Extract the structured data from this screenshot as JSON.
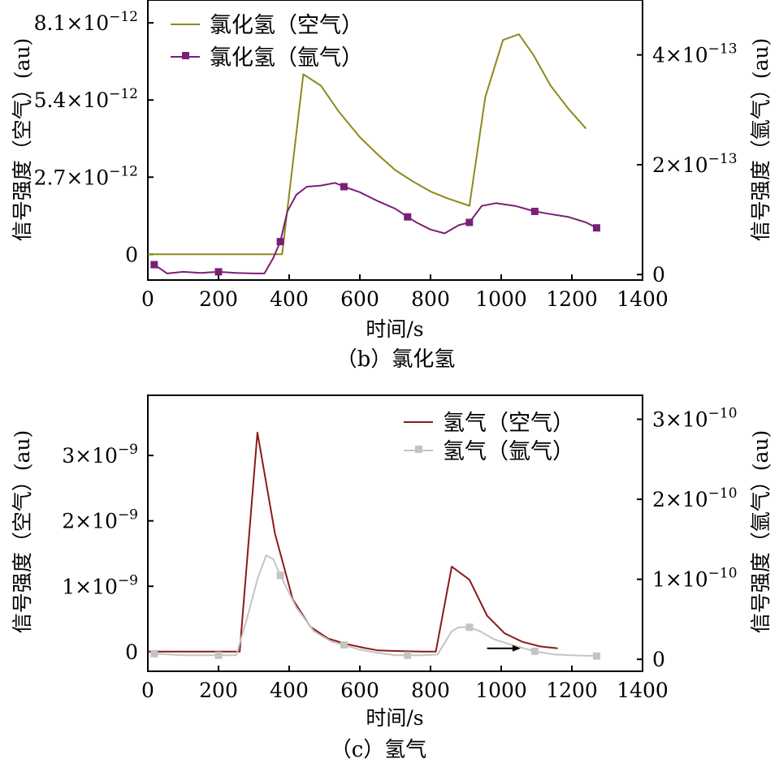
{
  "chart_data": [
    {
      "panel": "b",
      "type": "line",
      "caption": "（b）氯化氢",
      "xlabel": "时间/s",
      "xlim": [
        0,
        1400
      ],
      "xticks": [
        0,
        200,
        400,
        600,
        800,
        1000,
        1200,
        1400
      ],
      "ylabel_left": "信号强度（空气）(au)",
      "ylabel_right": "信号强度（氩气）(au)",
      "ylim_left": [
        -9e-13,
        8.9e-12
      ],
      "yticks_left": [
        {
          "value": 0,
          "mantissa": "0",
          "exp": ""
        },
        {
          "value": 2.7e-12,
          "mantissa": "2.7×10",
          "exp": "−12"
        },
        {
          "value": 5.4e-12,
          "mantissa": "5.4×10",
          "exp": "−12"
        },
        {
          "value": 8.1e-12,
          "mantissa": "8.1×10",
          "exp": "−12"
        }
      ],
      "ylim_right": [
        -1e-14,
        5e-13
      ],
      "yticks_right": [
        {
          "value": 0,
          "mantissa": "0",
          "exp": ""
        },
        {
          "value": 2e-13,
          "mantissa": "2×10",
          "exp": "−13"
        },
        {
          "value": 4e-13,
          "mantissa": "4×10",
          "exp": "−13"
        }
      ],
      "series": [
        {
          "name": "氯化氢（空气）",
          "axis": "left",
          "color": "#8e8a1a",
          "marker": "none",
          "x": [
            0,
            380,
            440,
            490,
            540,
            600,
            650,
            700,
            750,
            800,
            850,
            910,
            955,
            1005,
            1050,
            1090,
            1140,
            1190,
            1240
          ],
          "y": [
            0,
            0,
            6.3e-12,
            5.9e-12,
            5e-12,
            4.1e-12,
            3.5e-12,
            2.95e-12,
            2.55e-12,
            2.2e-12,
            1.95e-12,
            1.7e-12,
            5.5e-12,
            7.5e-12,
            7.7e-12,
            7e-12,
            5.9e-12,
            5.1e-12,
            4.4e-12
          ]
        },
        {
          "name": "氯化氢（氩气）",
          "axis": "right",
          "color": "#7a1f78",
          "marker": "square",
          "x": [
            18,
            55,
            100,
            150,
            200,
            250,
            300,
            330,
            355,
            375,
            395,
            420,
            450,
            490,
            530,
            555,
            600,
            650,
            700,
            735,
            760,
            800,
            840,
            880,
            910,
            945,
            985,
            1040,
            1095,
            1140,
            1190,
            1240,
            1270
          ],
          "y": [
            1.8e-14,
            2e-15,
            5e-15,
            3e-15,
            5e-15,
            3e-15,
            2e-15,
            2e-15,
            3e-14,
            6e-14,
            1.15e-13,
            1.45e-13,
            1.6e-13,
            1.62e-13,
            1.67e-13,
            1.6e-13,
            1.5e-13,
            1.34e-13,
            1.2e-13,
            1.05e-13,
            9.5e-14,
            8.2e-14,
            7.5e-14,
            9e-14,
            9.5e-14,
            1.25e-13,
            1.3e-13,
            1.25e-13,
            1.15e-13,
            1.1e-13,
            1.05e-13,
            9.5e-14,
            8.5e-14
          ],
          "marker_x": [
            18,
            200,
            375,
            555,
            735,
            910,
            1095,
            1270
          ]
        }
      ]
    },
    {
      "panel": "c",
      "type": "line",
      "caption": "（c）氢气",
      "xlabel": "时间/s",
      "xlim": [
        0,
        1400
      ],
      "xticks": [
        0,
        200,
        400,
        600,
        800,
        1000,
        1200,
        1400
      ],
      "ylabel_left": "信号强度（空气）(au)",
      "ylabel_right": "信号强度（氩气）(au)",
      "ylim_left": [
        -3e-10,
        3.92e-09
      ],
      "yticks_left": [
        {
          "value": 0,
          "mantissa": "0",
          "exp": ""
        },
        {
          "value": 1e-09,
          "mantissa": "1×10",
          "exp": "−9"
        },
        {
          "value": 2e-09,
          "mantissa": "2×10",
          "exp": "−9"
        },
        {
          "value": 3e-09,
          "mantissa": "3×10",
          "exp": "−9"
        }
      ],
      "ylim_right": [
        -1.5e-11,
        3.3e-10
      ],
      "yticks_right": [
        {
          "value": 0,
          "mantissa": "0",
          "exp": ""
        },
        {
          "value": 1e-10,
          "mantissa": "1×10",
          "exp": "−10"
        },
        {
          "value": 2e-10,
          "mantissa": "2×10",
          "exp": "−10"
        },
        {
          "value": 3e-10,
          "mantissa": "3×10",
          "exp": "−10"
        }
      ],
      "series": [
        {
          "name": "氢气（空气）",
          "axis": "left",
          "color": "#8b1a1a",
          "marker": "none",
          "x": [
            0,
            260,
            310,
            360,
            410,
            460,
            510,
            560,
            610,
            650,
            700,
            780,
            815,
            860,
            910,
            960,
            1010,
            1060,
            1110,
            1160
          ],
          "y": [
            0,
            0,
            3.35e-09,
            1.8e-09,
            8e-10,
            3.8e-10,
            2e-10,
            1.2e-10,
            6e-11,
            2e-11,
            1e-11,
            0,
            0,
            1.3e-09,
            1.1e-09,
            5.5e-10,
            2.8e-10,
            1.5e-10,
            8e-11,
            5e-11
          ]
        },
        {
          "name": "氢气（氩气）",
          "axis": "right",
          "color": "#c4c4c4",
          "marker": "square",
          "x": [
            18,
            100,
            200,
            250,
            280,
            310,
            335,
            355,
            375,
            420,
            470,
            520,
            555,
            600,
            650,
            700,
            735,
            780,
            820,
            860,
            880,
            910,
            940,
            980,
            1030,
            1095,
            1150,
            1200,
            1270
          ],
          "y": [
            7e-12,
            5e-12,
            5e-12,
            5e-12,
            5e-11,
            1e-10,
            1.3e-10,
            1.25e-10,
            1.05e-10,
            6.5e-11,
            3.5e-11,
            2.2e-11,
            1.8e-11,
            1.2e-11,
            8e-12,
            5e-12,
            5e-12,
            5e-12,
            6e-12,
            3.5e-11,
            4e-11,
            4e-11,
            3.5e-11,
            2.5e-11,
            1.8e-11,
            1e-11,
            6e-12,
            5e-12,
            4e-12
          ],
          "marker_x": [
            18,
            200,
            375,
            555,
            735,
            910,
            1095,
            1270
          ]
        }
      ],
      "annotations": [
        {
          "type": "arrow",
          "from": [
            960,
            5e-11
          ],
          "to": [
            1055,
            5e-11
          ],
          "axis": "left",
          "color": "#000000"
        }
      ]
    }
  ]
}
